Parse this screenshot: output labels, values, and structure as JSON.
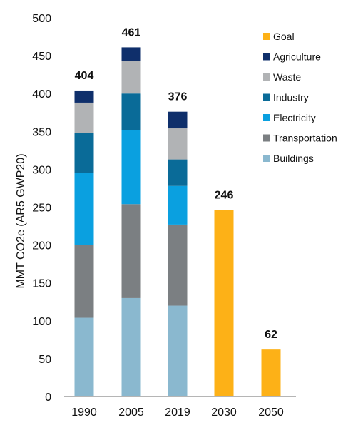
{
  "chart_data": {
    "type": "bar",
    "stacked": true,
    "categories": [
      "1990",
      "2005",
      "2019",
      "2030",
      "2050"
    ],
    "ylabel": "MMT CO2e (AR5 GWP20)",
    "xlabel": "",
    "ylim": [
      0,
      500
    ],
    "yticks": [
      0,
      50,
      100,
      150,
      200,
      250,
      300,
      350,
      400,
      450,
      500
    ],
    "grid": false,
    "legend_position": "right",
    "totals": [
      "404",
      "461",
      "376",
      "246",
      "62"
    ],
    "series": [
      {
        "name": "Buildings",
        "color": "#8ab8cf",
        "values": [
          104,
          130,
          120,
          0,
          0
        ]
      },
      {
        "name": "Transportation",
        "color": "#7b7f82",
        "values": [
          96,
          124,
          107,
          0,
          0
        ]
      },
      {
        "name": "Electricity",
        "color": "#0aa0e0",
        "values": [
          95,
          98,
          51,
          0,
          0
        ]
      },
      {
        "name": "Industry",
        "color": "#0a6b98",
        "values": [
          53,
          48,
          35,
          0,
          0
        ]
      },
      {
        "name": "Waste",
        "color": "#b1b3b5",
        "values": [
          40,
          43,
          41,
          0,
          0
        ]
      },
      {
        "name": "Agriculture",
        "color": "#0f2f6b",
        "values": [
          16,
          18,
          22,
          0,
          0
        ]
      },
      {
        "name": "Goal",
        "color": "#fdb117",
        "values": [
          0,
          0,
          0,
          246,
          62
        ]
      }
    ],
    "legend_order": [
      "Goal",
      "Agriculture",
      "Waste",
      "Industry",
      "Electricity",
      "Transportation",
      "Buildings"
    ]
  }
}
